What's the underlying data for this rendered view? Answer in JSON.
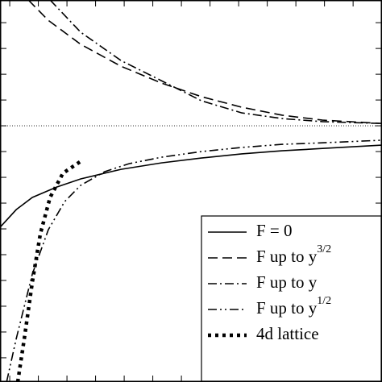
{
  "chart_data": {
    "type": "line",
    "xlim": [
      -0.34,
      13.01
    ],
    "ylim": [
      -9.94,
      4.88
    ],
    "xticks": [
      0,
      1,
      2,
      3,
      4,
      5,
      6,
      7,
      8,
      9,
      10,
      11,
      12,
      13
    ],
    "yticks": [
      -9,
      -8,
      -7,
      -6,
      -5,
      -4,
      -3,
      -2,
      -1,
      0,
      1,
      2,
      3,
      4
    ],
    "hline": 0,
    "legend": "lower right",
    "series": [
      {
        "name": "F = 0",
        "style": "solid",
        "color": "#000000",
        "x": [
          -0.34,
          0.23,
          0.79,
          1.63,
          2.48,
          3.89,
          5.3,
          6.7,
          8.11,
          9.52,
          10.93,
          13.01
        ],
        "values": [
          -3.94,
          -3.25,
          -2.78,
          -2.38,
          -2.06,
          -1.69,
          -1.44,
          -1.25,
          -1.09,
          -0.97,
          -0.88,
          -0.75
        ]
      },
      {
        "name": "F up to y",
        "superscript": "3/2",
        "style": "dashed",
        "color": "#000000",
        "x": [
          0.65,
          1.35,
          2.48,
          3.89,
          5.3,
          6.7,
          8.11,
          9.52,
          10.93,
          13.01
        ],
        "values": [
          4.88,
          4.09,
          3.16,
          2.31,
          1.66,
          1.13,
          0.72,
          0.41,
          0.22,
          0.09
        ]
      },
      {
        "name": "F up to y",
        "style": "dashdot",
        "color": "#000000",
        "x": [
          1.41,
          2.48,
          3.89,
          5.3,
          6.7,
          8.11,
          9.52,
          10.93,
          13.01
        ],
        "values": [
          4.88,
          3.63,
          2.53,
          1.75,
          0.97,
          0.5,
          0.28,
          0.16,
          0.09
        ]
      },
      {
        "name": "F up to y",
        "superscript": "1/2",
        "style": "dashdotdot",
        "color": "#000000",
        "x": [
          -0.11,
          0.23,
          0.79,
          1.35,
          1.92,
          2.48,
          3.32,
          4.17,
          5.3,
          6.7,
          8.11,
          9.52,
          10.93,
          13.01
        ],
        "values": [
          -9.94,
          -8.25,
          -5.75,
          -4.03,
          -2.94,
          -2.31,
          -1.78,
          -1.47,
          -1.22,
          -1.0,
          -0.84,
          -0.72,
          -0.66,
          -0.56
        ]
      },
      {
        "name": "4d lattice",
        "style": "dotted",
        "color": "#000000",
        "x": [
          0.28,
          0.51,
          0.79,
          1.07,
          1.41,
          1.86,
          2.48
        ],
        "values": [
          -9.94,
          -8.25,
          -6.06,
          -4.19,
          -2.78,
          -1.84,
          -1.38
        ]
      }
    ]
  }
}
